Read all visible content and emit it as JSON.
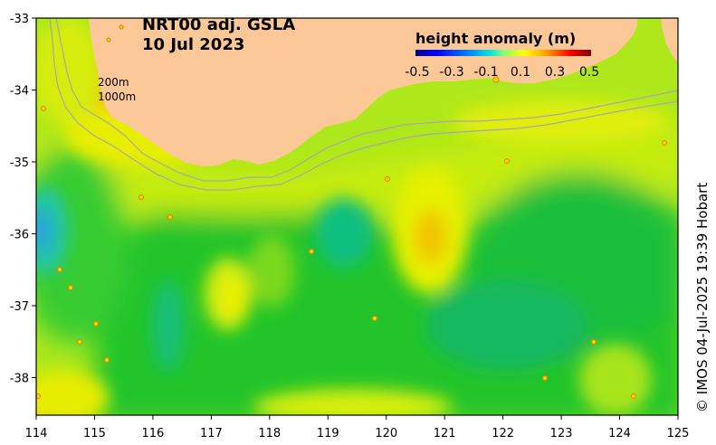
{
  "title": {
    "line1": "NRT00 adj. GSLA",
    "line2": "10 Jul 2023"
  },
  "legend": {
    "title": "height anomaly (m)",
    "ticks": [
      "-0.5",
      "-0.3",
      "-0.1",
      "0.1",
      "0.3",
      "0.5"
    ],
    "colors": [
      "#00007f",
      "#0000ff",
      "#0080ff",
      "#00ffff",
      "#7dff7a",
      "#ffff00",
      "#ff8000",
      "#ff0000",
      "#7f0000"
    ]
  },
  "isobaths": {
    "label_200": "200m",
    "label_1000": "1000m"
  },
  "x_axis": {
    "ticks": [
      "114",
      "115",
      "116",
      "117",
      "118",
      "119",
      "120",
      "121",
      "122",
      "123",
      "124",
      "125"
    ]
  },
  "y_axis": {
    "ticks": [
      "-33",
      "-34",
      "-35",
      "-36",
      "-37",
      "-38"
    ]
  },
  "credit": "© IMOS 04-Jul-2025 19:39 Hobart",
  "colors": {
    "land": "#fdc897",
    "base_sea": "#aee81c"
  },
  "map_data": {
    "lon_range": [
      114,
      125
    ],
    "lat_range": [
      -38.5,
      -33
    ],
    "anomaly_features": [
      {
        "name": "western-low",
        "lon": 114.1,
        "lat": -36.0,
        "value": -0.2
      },
      {
        "name": "central-low",
        "lon": 119.0,
        "lat": -36.0,
        "value": -0.1
      },
      {
        "name": "southwest-low",
        "lon": 116.2,
        "lat": -37.3,
        "value": -0.1
      },
      {
        "name": "eddy-high",
        "lon": 120.8,
        "lat": -36.0,
        "value": 0.2
      },
      {
        "name": "south-central-high",
        "lon": 117.3,
        "lat": -37.0,
        "value": 0.15
      },
      {
        "name": "southwest-corner-high",
        "lon": 114.4,
        "lat": -38.4,
        "value": 0.25
      }
    ]
  }
}
